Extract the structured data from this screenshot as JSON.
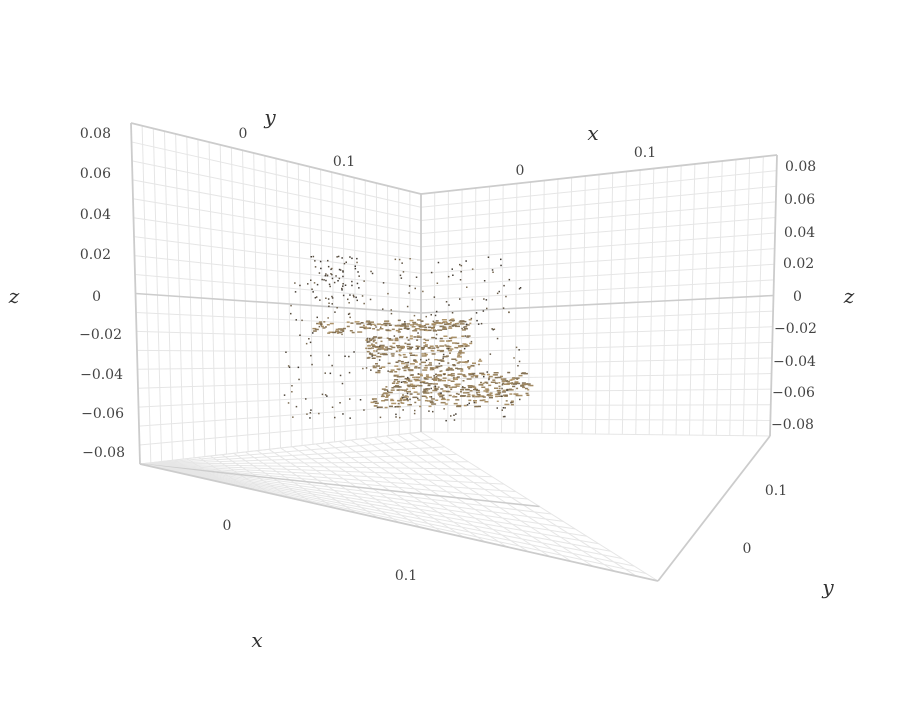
{
  "chart_data": {
    "type": "scatter",
    "subtype": "3d-point-cloud",
    "title": "",
    "axes": {
      "x": {
        "label": "x",
        "ticks": [
          "0",
          "0.1"
        ],
        "range": [
          -0.06,
          0.2
        ]
      },
      "y": {
        "label": "y",
        "ticks": [
          "0",
          "0.1"
        ],
        "range": [
          -0.06,
          0.18
        ]
      },
      "z": {
        "label": "z",
        "ticks": [
          "0.08",
          "0.06",
          "0.04",
          "0.02",
          "0",
          "−0.02",
          "−0.04",
          "−0.06",
          "−0.08"
        ],
        "range": [
          -0.09,
          0.09
        ]
      }
    },
    "grid": true,
    "legend": "none",
    "colors": {
      "point_light": "#b59a6e",
      "point_dark": "#3a3530",
      "grid": "#e6e6e6",
      "axis_line": "#cccccc"
    },
    "point_cloud_note": "colored surface points, approx 1500 samples, brownish/tan tones"
  }
}
